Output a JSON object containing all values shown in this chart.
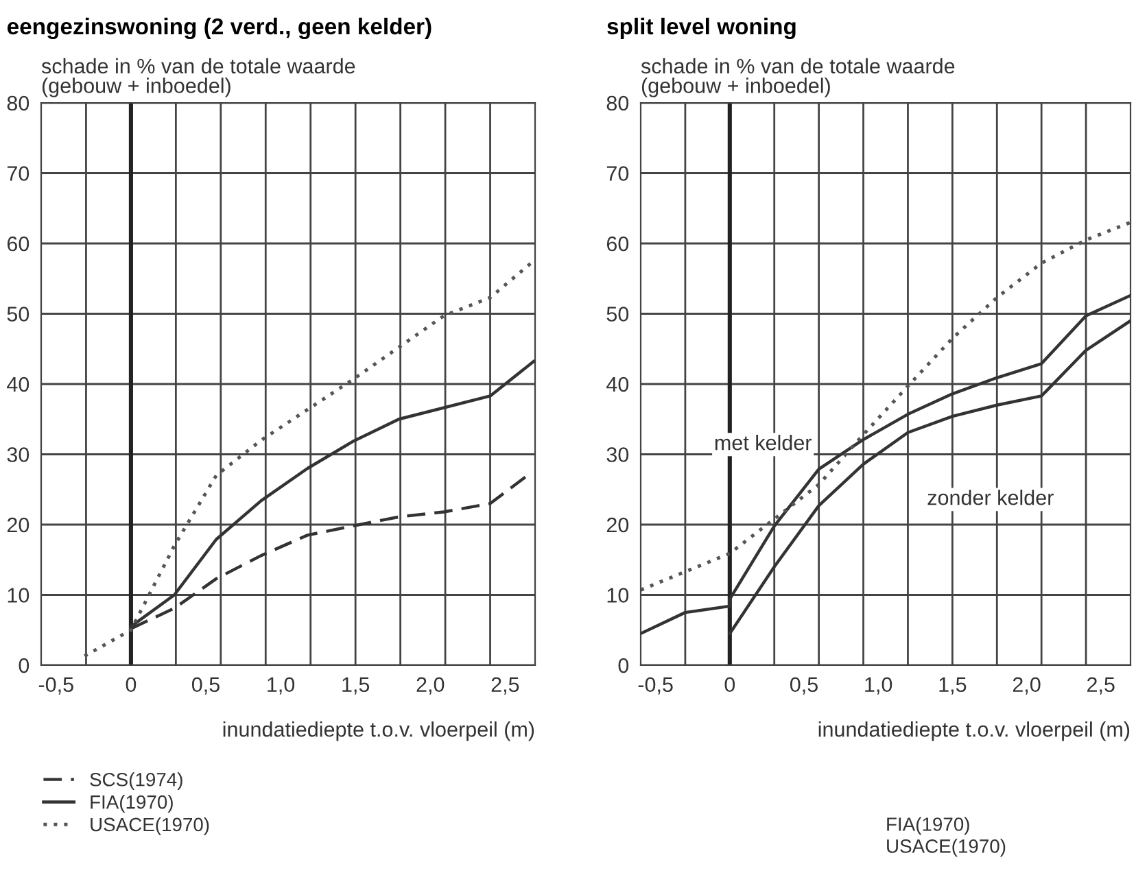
{
  "chart_data": [
    {
      "type": "line",
      "title": "eengezinswoning (2 verd., geen kelder)",
      "ylabel": "schade in % van de totale waarde\n(gebouw + inboedel)",
      "xlabel": "inundatiediepte t.o.v. vloerpeil (m)",
      "xlim": [
        -0.6,
        2.7
      ],
      "ylim": [
        0,
        80
      ],
      "xticks": [
        {
          "value": -0.5,
          "label": "-0,5"
        },
        0,
        {
          "value": 0.5,
          "label": "0,5"
        },
        {
          "value": 1.0,
          "label": "1,0"
        },
        {
          "value": 1.5,
          "label": "1,5"
        },
        {
          "value": 2.0,
          "label": "2,0"
        },
        {
          "value": 2.5,
          "label": "2,5"
        },
        {
          "value": -0.3,
          "label": null
        },
        {
          "value": 0.3,
          "label": null
        },
        {
          "value": 0.6,
          "label": null
        },
        {
          "value": 0.9,
          "label": null
        },
        {
          "value": 1.2,
          "label": null
        },
        {
          "value": 1.5,
          "label": null
        },
        {
          "value": 1.8,
          "label": null
        },
        {
          "value": 2.1,
          "label": null
        },
        {
          "value": 2.4,
          "label": null
        }
      ],
      "yticks": [
        0,
        10,
        20,
        30,
        40,
        50,
        60,
        70,
        80
      ],
      "grid": true,
      "legend": "bottom left",
      "marker": "none",
      "ref_lines": [
        {
          "axis": "x",
          "value": 0,
          "color": "#222222"
        }
      ],
      "series": [
        {
          "name": "SCS(1974)",
          "color": "#333333",
          "line_style": "dashed",
          "x": [
            0,
            0.29,
            0.57,
            0.87,
            1.18,
            1.48,
            1.79,
            2.09,
            2.4,
            2.65
          ],
          "values": [
            5.2,
            8.1,
            12.3,
            15.6,
            18.5,
            19.8,
            21.1,
            21.8,
            23,
            27
          ]
        },
        {
          "name": "FIA(1970)",
          "color": "#333333",
          "line_style": "solid",
          "x": [
            0,
            0.29,
            0.57,
            0.87,
            1.18,
            1.48,
            1.79,
            2.4,
            2.69
          ],
          "values": [
            5.5,
            10,
            17.9,
            23.4,
            28,
            31.8,
            35,
            38.3,
            43.2
          ]
        },
        {
          "name": "USACE(1970)",
          "color": "#555555",
          "line_style": "dotted",
          "x": [
            -0.31,
            0,
            0.29,
            0.57,
            0.87,
            1.48,
            2.09,
            2.4,
            2.69
          ],
          "values": [
            1.3,
            5,
            17,
            27,
            32,
            40.6,
            49.7,
            52.3,
            57.5
          ]
        }
      ]
    },
    {
      "type": "line",
      "title": "split level woning",
      "ylabel": "schade in % van de totale waarde\n(gebouw + inboedel)",
      "xlabel": "inundatiediepte t.o.v. vloerpeil (m)",
      "xlim": [
        -0.6,
        2.7
      ],
      "ylim": [
        0,
        80
      ],
      "xticks": [
        {
          "value": -0.5,
          "label": "-0,5"
        },
        0,
        {
          "value": 0.5,
          "label": "0,5"
        },
        {
          "value": 1.0,
          "label": "1,0"
        },
        {
          "value": 1.5,
          "label": "1,5"
        },
        {
          "value": 2.0,
          "label": "2,0"
        },
        {
          "value": 2.5,
          "label": "2,5"
        },
        {
          "value": -0.3,
          "label": null
        },
        {
          "value": 0.3,
          "label": null
        },
        {
          "value": 0.6,
          "label": null
        },
        {
          "value": 0.9,
          "label": null
        },
        {
          "value": 1.2,
          "label": null
        },
        {
          "value": 1.5,
          "label": null
        },
        {
          "value": 1.8,
          "label": null
        },
        {
          "value": 2.1,
          "label": null
        },
        {
          "value": 2.4,
          "label": null
        }
      ],
      "yticks": [
        0,
        10,
        20,
        30,
        40,
        50,
        60,
        70,
        80
      ],
      "grid": true,
      "marker": "none",
      "ref_lines": [
        {
          "axis": "x",
          "value": 0,
          "color": "#222222"
        }
      ],
      "annotations": [
        "FIA(1970)\nUSACE(1970)"
      ],
      "series": [
        {
          "name": "met kelder",
          "color": "#333333",
          "line_style": "solid",
          "x": [
            -0.6,
            -0.3,
            0,
            0,
            0.3,
            0.6,
            0.9,
            1.2,
            1.5,
            1.8,
            2.1,
            2.4,
            2.7
          ],
          "values": [
            4.5,
            7.5,
            8.4,
            9.4,
            19.8,
            27.9,
            32.1,
            35.7,
            38.6,
            40.9,
            42.9,
            49.7,
            52.6
          ]
        },
        {
          "name": "zonder kelder",
          "color": "#333333",
          "line_style": "solid",
          "x": [
            0,
            0.3,
            0.6,
            0.9,
            1.2,
            1.5,
            1.8,
            2.1,
            2.4,
            2.7
          ],
          "values": [
            4.5,
            14,
            22.7,
            28.6,
            33.1,
            35.4,
            37,
            38.3,
            44.8,
            49
          ]
        },
        {
          "color": "#555555",
          "line_style": "dotted",
          "x": [
            -0.6,
            0,
            0.6,
            0.9,
            1.2,
            1.5,
            1.8,
            2.1,
            2.4,
            2.7
          ],
          "values": [
            10.7,
            15.9,
            25.7,
            32.8,
            39.7,
            46.5,
            52.3,
            57.2,
            60.5,
            63
          ]
        }
      ]
    }
  ]
}
